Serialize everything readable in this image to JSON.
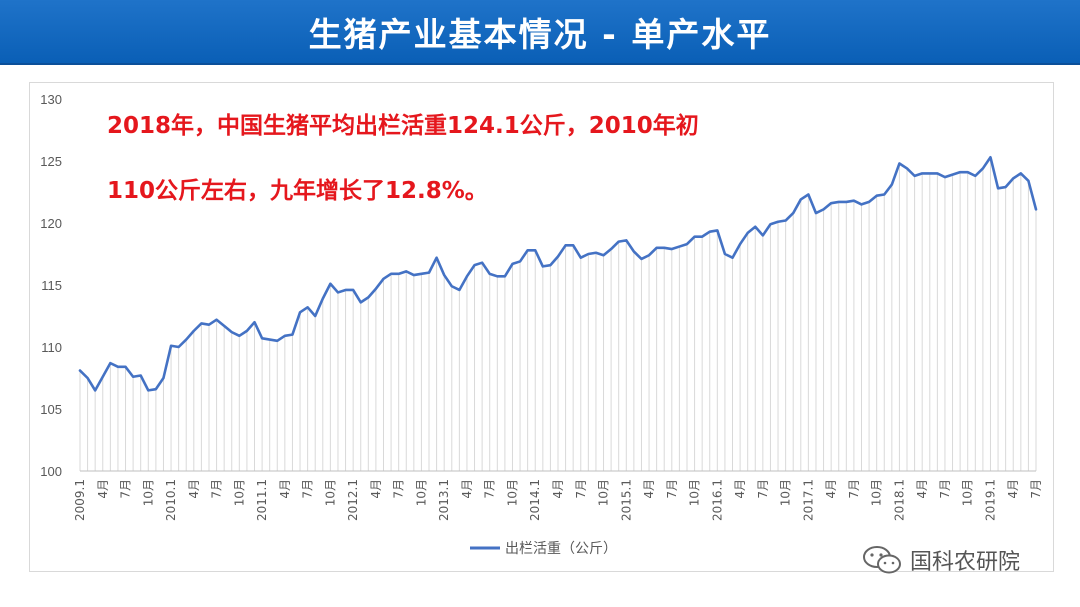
{
  "header": {
    "title": "生猪产业基本情况 - 单产水平"
  },
  "annotation": {
    "line1": "2018年，中国生猪平均出栏活重124.1公斤，2010年初",
    "line2": "110公斤左右，九年增长了12.8%。"
  },
  "watermark": {
    "text": "国科农研院",
    "icon": "wechat-icon"
  },
  "colors": {
    "banner": "#0a66c2",
    "line": "#4472c4",
    "annotation": "#e5171d",
    "fill": "#d9d9d9"
  },
  "chart_data": {
    "type": "line",
    "title": "",
    "xlabel": "",
    "ylabel": "",
    "ylim": [
      100,
      130
    ],
    "yticks": [
      100,
      105,
      110,
      115,
      120,
      125,
      130
    ],
    "grid": false,
    "legend_position": "bottom",
    "x_tick_labels": [
      "2009.1",
      "4月",
      "7月",
      "10月",
      "2010.1",
      "4月",
      "7月",
      "10月",
      "2011.1",
      "4月",
      "7月",
      "10月",
      "2012.1",
      "4月",
      "7月",
      "10月",
      "2013.1",
      "4月",
      "7月",
      "10月",
      "2014.1",
      "4月",
      "7月",
      "10月",
      "2015.1",
      "4月",
      "7月",
      "10月",
      "2016.1",
      "4月",
      "7月",
      "10月",
      "2017.1",
      "4月",
      "7月",
      "10月",
      "2018.1",
      "4月",
      "7月",
      "10月",
      "2019.1",
      "4月",
      "7月"
    ],
    "series": [
      {
        "name": "出栏活重（公斤）",
        "start": "2009-01",
        "frequency": "monthly",
        "values": [
          108.1,
          107.5,
          106.5,
          107.6,
          108.7,
          108.4,
          108.4,
          107.6,
          107.7,
          106.5,
          106.6,
          107.5,
          110.1,
          110.0,
          110.6,
          111.3,
          111.9,
          111.8,
          112.2,
          111.7,
          111.2,
          110.9,
          111.3,
          112.0,
          110.7,
          110.6,
          110.5,
          110.9,
          111.0,
          112.8,
          113.2,
          112.5,
          113.9,
          115.1,
          114.4,
          114.6,
          114.6,
          113.6,
          114.0,
          114.7,
          115.5,
          115.9,
          115.9,
          116.1,
          115.8,
          115.9,
          116.0,
          117.2,
          115.8,
          114.9,
          114.6,
          115.7,
          116.6,
          116.8,
          115.9,
          115.7,
          115.7,
          116.7,
          116.9,
          117.8,
          117.8,
          116.5,
          116.6,
          117.3,
          118.2,
          118.2,
          117.2,
          117.5,
          117.6,
          117.4,
          117.9,
          118.5,
          118.6,
          117.7,
          117.1,
          117.4,
          118.0,
          118.0,
          117.9,
          118.1,
          118.3,
          118.9,
          118.9,
          119.3,
          119.4,
          117.5,
          117.2,
          118.3,
          119.2,
          119.7,
          119.0,
          119.9,
          120.1,
          120.2,
          120.8,
          121.9,
          122.3,
          120.8,
          121.1,
          121.6,
          121.7,
          121.7,
          121.8,
          121.5,
          121.7,
          122.2,
          122.3,
          123.1,
          124.8,
          124.4,
          123.8,
          124.0,
          124.0,
          124.0,
          123.7,
          123.9,
          124.1,
          124.1,
          123.8,
          124.4,
          125.3,
          122.8,
          122.9,
          123.6,
          124.0,
          123.4,
          121.1
        ]
      }
    ]
  }
}
